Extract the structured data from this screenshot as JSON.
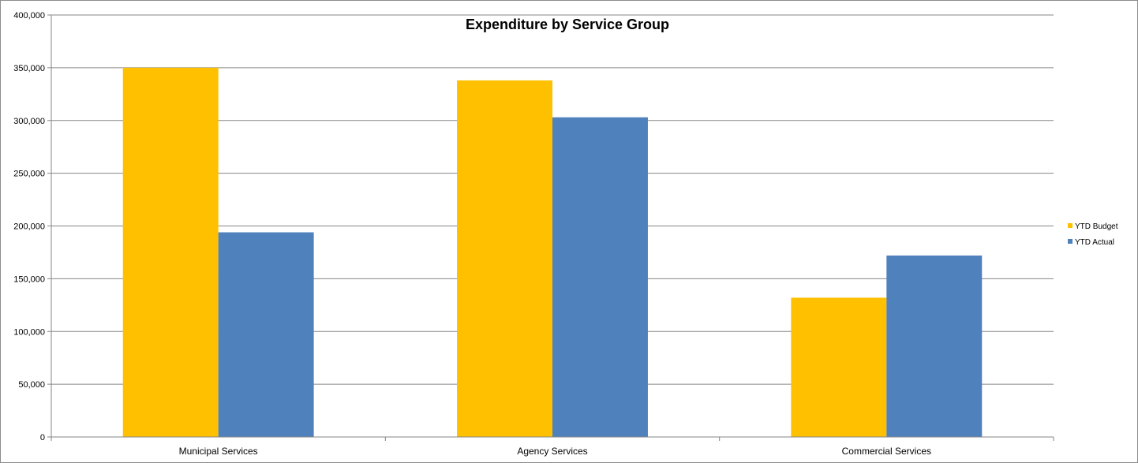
{
  "chart_data": {
    "type": "bar",
    "title": "Expenditure by Service Group",
    "xlabel": "",
    "ylabel": "",
    "categories": [
      "Municipal Services",
      "Agency Services",
      "Commercial Services"
    ],
    "series": [
      {
        "name": "YTD Budget",
        "color": "#FFC000",
        "values": [
          350000,
          338000,
          132000
        ]
      },
      {
        "name": "YTD Actual",
        "color": "#4F81BD",
        "values": [
          194000,
          303000,
          172000
        ]
      }
    ],
    "ylim": [
      0,
      400000
    ],
    "yticks": [
      0,
      50000,
      100000,
      150000,
      200000,
      250000,
      300000,
      350000,
      400000
    ],
    "ytick_labels": [
      "0",
      "50,000",
      "100,000",
      "150,000",
      "200,000",
      "250,000",
      "300,000",
      "350,000",
      "400,000"
    ],
    "grid": true,
    "legend_position": "right"
  }
}
